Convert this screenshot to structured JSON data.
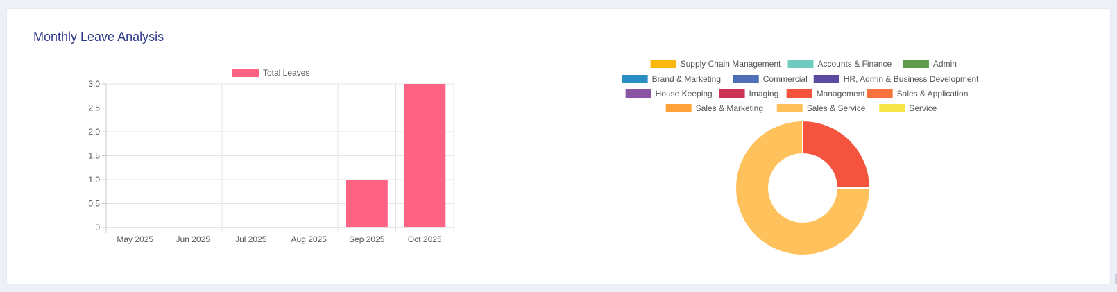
{
  "card": {
    "title": "Monthly Leave Analysis"
  },
  "colors": {
    "title": "#2e3a8c",
    "bar": "#ff6384",
    "grid": "#e4e4e4",
    "axis": "#c8c8c8",
    "text": "#555555"
  },
  "chart_data": [
    {
      "type": "bar",
      "categories": [
        "May 2025",
        "Jun 2025",
        "Jul 2025",
        "Aug 2025",
        "Sep 2025",
        "Oct 2025"
      ],
      "series": [
        {
          "name": "Total Leaves",
          "values": [
            0,
            0,
            0,
            0,
            1,
            3
          ],
          "color": "#ff6384"
        }
      ],
      "ylim": [
        0,
        3
      ],
      "yticks": [
        "0",
        "0.5",
        "1.0",
        "1.5",
        "2.0",
        "2.5",
        "3.0"
      ],
      "legend": "top",
      "grid": true
    },
    {
      "type": "pie",
      "variant": "doughnut",
      "legend": "top",
      "labels": [
        "Supply Chain Management",
        "Accounts & Finance",
        "Admin",
        "Brand & Marketing",
        "Commercial",
        "HR, Admin & Business Development",
        "House Keeping",
        "Imaging",
        "Management",
        "Sales & Application",
        "Sales & Marketing",
        "Sales & Service",
        "Service"
      ],
      "colors": [
        "#f9b90e",
        "#6fcabf",
        "#5d9b4a",
        "#2a8ec4",
        "#4e6fb5",
        "#5b4aa0",
        "#8b55a4",
        "#cc3354",
        "#f4533d",
        "#f7733d",
        "#ffa23a",
        "#ffc15b",
        "#f8e54a"
      ],
      "values": [
        0,
        0,
        0,
        0,
        0,
        0,
        0,
        0,
        1,
        0,
        0,
        3,
        0
      ]
    }
  ]
}
